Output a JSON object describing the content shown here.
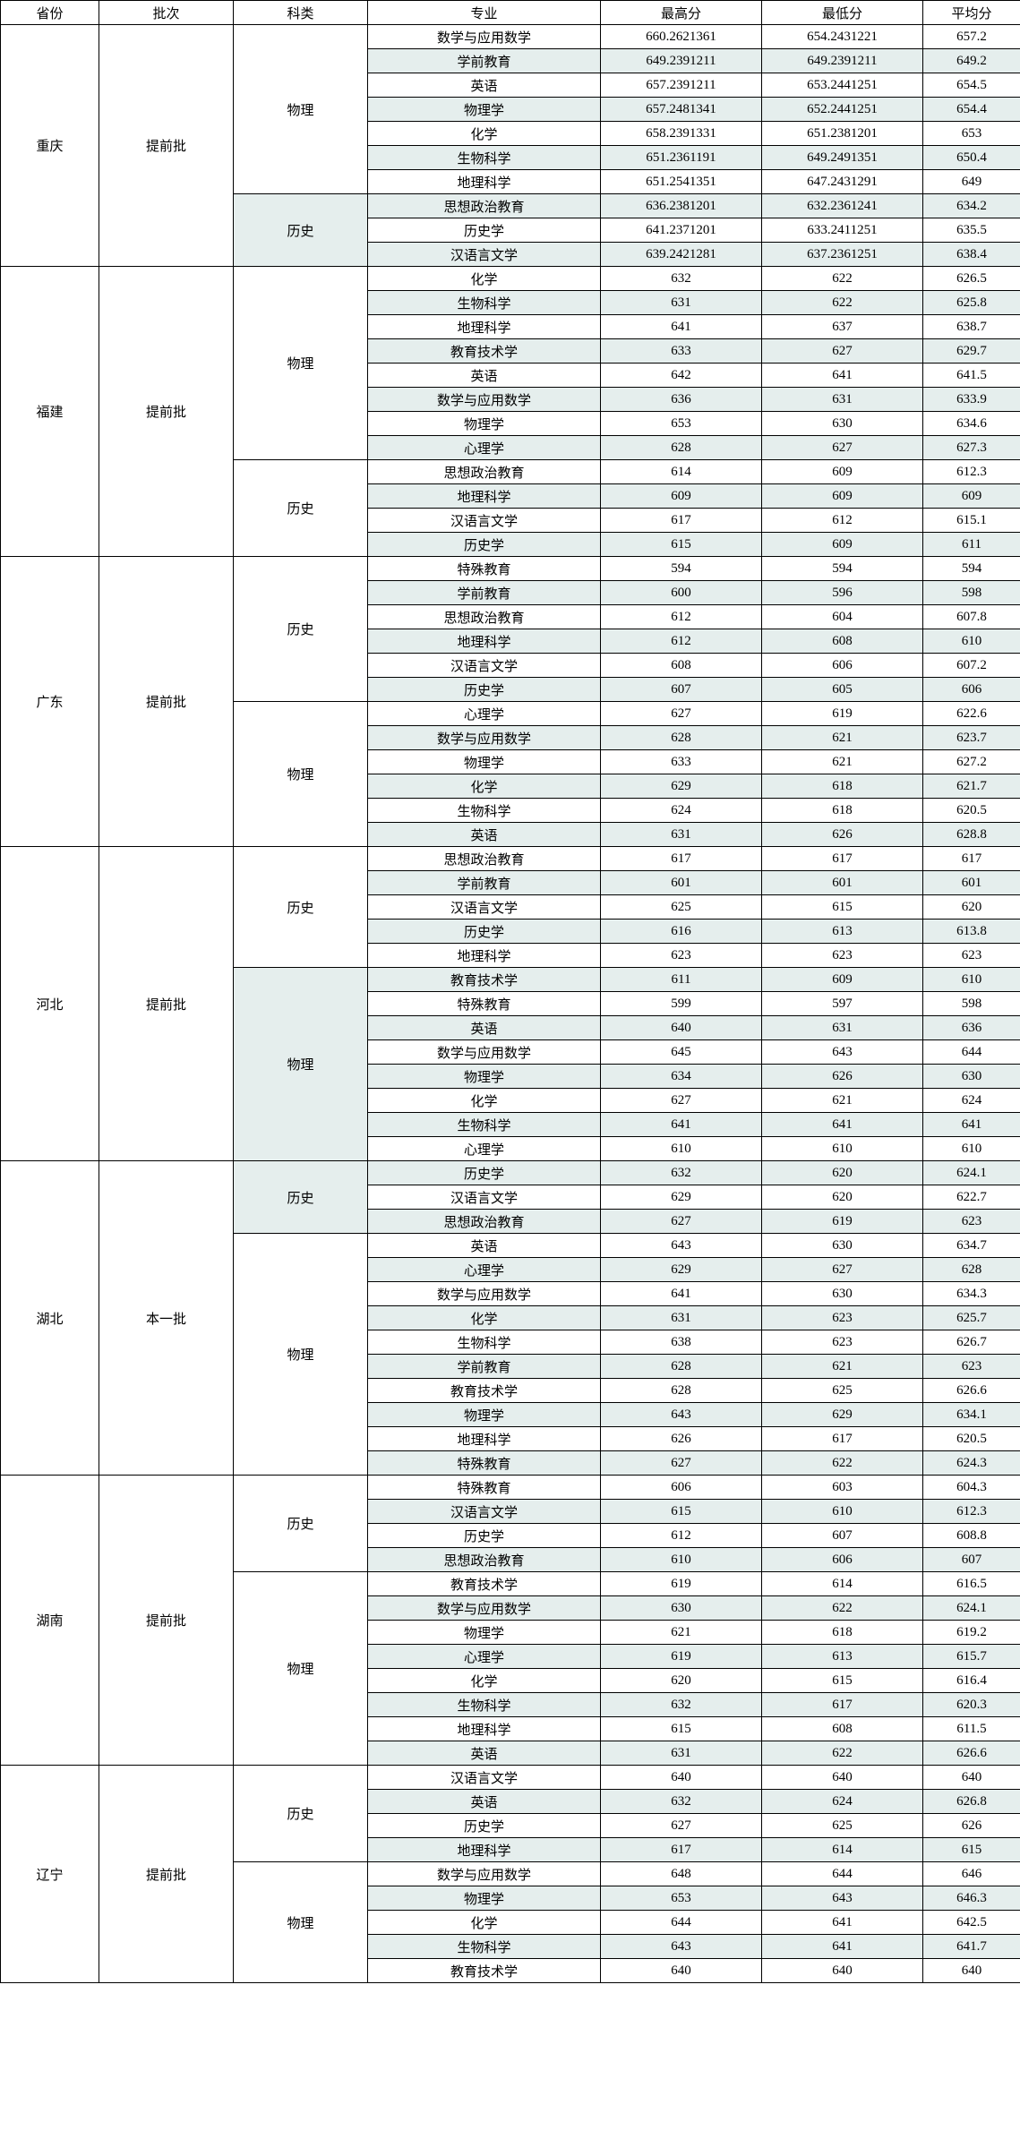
{
  "headers": [
    "省份",
    "批次",
    "科类",
    "专业",
    "最高分",
    "最低分",
    "平均分"
  ],
  "alt_bg": "#e5eeed",
  "provinces": [
    {
      "name": "重庆",
      "batch": "提前批",
      "categories": [
        {
          "name": "物理",
          "rows": [
            {
              "major": "数学与应用数学",
              "max": "660.2621361",
              "min": "654.2431221",
              "avg": "657.2"
            },
            {
              "major": "学前教育",
              "max": "649.2391211",
              "min": "649.2391211",
              "avg": "649.2"
            },
            {
              "major": "英语",
              "max": "657.2391211",
              "min": "653.2441251",
              "avg": "654.5"
            },
            {
              "major": "物理学",
              "max": "657.2481341",
              "min": "652.2441251",
              "avg": "654.4"
            },
            {
              "major": "化学",
              "max": "658.2391331",
              "min": "651.2381201",
              "avg": "653"
            },
            {
              "major": "生物科学",
              "max": "651.2361191",
              "min": "649.2491351",
              "avg": "650.4"
            },
            {
              "major": "地理科学",
              "max": "651.2541351",
              "min": "647.2431291",
              "avg": "649"
            }
          ]
        },
        {
          "name": "历史",
          "rows": [
            {
              "major": "思想政治教育",
              "max": "636.2381201",
              "min": "632.2361241",
              "avg": "634.2"
            },
            {
              "major": "历史学",
              "max": "641.2371201",
              "min": "633.2411251",
              "avg": "635.5"
            },
            {
              "major": "汉语言文学",
              "max": "639.2421281",
              "min": "637.2361251",
              "avg": "638.4"
            }
          ]
        }
      ]
    },
    {
      "name": "福建",
      "batch": "提前批",
      "categories": [
        {
          "name": "物理",
          "rows": [
            {
              "major": "化学",
              "max": "632",
              "min": "622",
              "avg": "626.5"
            },
            {
              "major": "生物科学",
              "max": "631",
              "min": "622",
              "avg": "625.8"
            },
            {
              "major": "地理科学",
              "max": "641",
              "min": "637",
              "avg": "638.7"
            },
            {
              "major": "教育技术学",
              "max": "633",
              "min": "627",
              "avg": "629.7"
            },
            {
              "major": "英语",
              "max": "642",
              "min": "641",
              "avg": "641.5"
            },
            {
              "major": "数学与应用数学",
              "max": "636",
              "min": "631",
              "avg": "633.9"
            },
            {
              "major": "物理学",
              "max": "653",
              "min": "630",
              "avg": "634.6"
            },
            {
              "major": "心理学",
              "max": "628",
              "min": "627",
              "avg": "627.3"
            }
          ]
        },
        {
          "name": "历史",
          "rows": [
            {
              "major": "思想政治教育",
              "max": "614",
              "min": "609",
              "avg": "612.3"
            },
            {
              "major": "地理科学",
              "max": "609",
              "min": "609",
              "avg": "609"
            },
            {
              "major": "汉语言文学",
              "max": "617",
              "min": "612",
              "avg": "615.1"
            },
            {
              "major": "历史学",
              "max": "615",
              "min": "609",
              "avg": "611"
            }
          ]
        }
      ]
    },
    {
      "name": "广东",
      "batch": "提前批",
      "categories": [
        {
          "name": "历史",
          "rows": [
            {
              "major": "特殊教育",
              "max": "594",
              "min": "594",
              "avg": "594"
            },
            {
              "major": "学前教育",
              "max": "600",
              "min": "596",
              "avg": "598"
            },
            {
              "major": "思想政治教育",
              "max": "612",
              "min": "604",
              "avg": "607.8"
            },
            {
              "major": "地理科学",
              "max": "612",
              "min": "608",
              "avg": "610"
            },
            {
              "major": "汉语言文学",
              "max": "608",
              "min": "606",
              "avg": "607.2"
            },
            {
              "major": "历史学",
              "max": "607",
              "min": "605",
              "avg": "606"
            }
          ]
        },
        {
          "name": "物理",
          "rows": [
            {
              "major": "心理学",
              "max": "627",
              "min": "619",
              "avg": "622.6"
            },
            {
              "major": "数学与应用数学",
              "max": "628",
              "min": "621",
              "avg": "623.7"
            },
            {
              "major": "物理学",
              "max": "633",
              "min": "621",
              "avg": "627.2"
            },
            {
              "major": "化学",
              "max": "629",
              "min": "618",
              "avg": "621.7"
            },
            {
              "major": "生物科学",
              "max": "624",
              "min": "618",
              "avg": "620.5"
            },
            {
              "major": "英语",
              "max": "631",
              "min": "626",
              "avg": "628.8"
            }
          ]
        }
      ]
    },
    {
      "name": "河北",
      "batch": "提前批",
      "categories": [
        {
          "name": "历史",
          "rows": [
            {
              "major": "思想政治教育",
              "max": "617",
              "min": "617",
              "avg": "617"
            },
            {
              "major": "学前教育",
              "max": "601",
              "min": "601",
              "avg": "601"
            },
            {
              "major": "汉语言文学",
              "max": "625",
              "min": "615",
              "avg": "620"
            },
            {
              "major": "历史学",
              "max": "616",
              "min": "613",
              "avg": "613.8"
            },
            {
              "major": "地理科学",
              "max": "623",
              "min": "623",
              "avg": "623"
            }
          ]
        },
        {
          "name": "物理",
          "rows": [
            {
              "major": "教育技术学",
              "max": "611",
              "min": "609",
              "avg": "610"
            },
            {
              "major": "特殊教育",
              "max": "599",
              "min": "597",
              "avg": "598"
            },
            {
              "major": "英语",
              "max": "640",
              "min": "631",
              "avg": "636"
            },
            {
              "major": "数学与应用数学",
              "max": "645",
              "min": "643",
              "avg": "644"
            },
            {
              "major": "物理学",
              "max": "634",
              "min": "626",
              "avg": "630"
            },
            {
              "major": "化学",
              "max": "627",
              "min": "621",
              "avg": "624"
            },
            {
              "major": "生物科学",
              "max": "641",
              "min": "641",
              "avg": "641"
            },
            {
              "major": "心理学",
              "max": "610",
              "min": "610",
              "avg": "610"
            }
          ]
        }
      ]
    },
    {
      "name": "湖北",
      "batch": "本一批",
      "categories": [
        {
          "name": "历史",
          "rows": [
            {
              "major": "历史学",
              "max": "632",
              "min": "620",
              "avg": "624.1"
            },
            {
              "major": "汉语言文学",
              "max": "629",
              "min": "620",
              "avg": "622.7"
            },
            {
              "major": "思想政治教育",
              "max": "627",
              "min": "619",
              "avg": "623"
            }
          ]
        },
        {
          "name": "物理",
          "rows": [
            {
              "major": "英语",
              "max": "643",
              "min": "630",
              "avg": "634.7"
            },
            {
              "major": "心理学",
              "max": "629",
              "min": "627",
              "avg": "628"
            },
            {
              "major": "数学与应用数学",
              "max": "641",
              "min": "630",
              "avg": "634.3"
            },
            {
              "major": "化学",
              "max": "631",
              "min": "623",
              "avg": "625.7"
            },
            {
              "major": "生物科学",
              "max": "638",
              "min": "623",
              "avg": "626.7"
            },
            {
              "major": "学前教育",
              "max": "628",
              "min": "621",
              "avg": "623"
            },
            {
              "major": "教育技术学",
              "max": "628",
              "min": "625",
              "avg": "626.6"
            },
            {
              "major": "物理学",
              "max": "643",
              "min": "629",
              "avg": "634.1"
            },
            {
              "major": "地理科学",
              "max": "626",
              "min": "617",
              "avg": "620.5"
            },
            {
              "major": "特殊教育",
              "max": "627",
              "min": "622",
              "avg": "624.3"
            }
          ]
        }
      ]
    },
    {
      "name": "湖南",
      "batch": "提前批",
      "categories": [
        {
          "name": "历史",
          "rows": [
            {
              "major": "特殊教育",
              "max": "606",
              "min": "603",
              "avg": "604.3"
            },
            {
              "major": "汉语言文学",
              "max": "615",
              "min": "610",
              "avg": "612.3"
            },
            {
              "major": "历史学",
              "max": "612",
              "min": "607",
              "avg": "608.8"
            },
            {
              "major": "思想政治教育",
              "max": "610",
              "min": "606",
              "avg": "607"
            }
          ]
        },
        {
          "name": "物理",
          "rows": [
            {
              "major": "教育技术学",
              "max": "619",
              "min": "614",
              "avg": "616.5"
            },
            {
              "major": "数学与应用数学",
              "max": "630",
              "min": "622",
              "avg": "624.1"
            },
            {
              "major": "物理学",
              "max": "621",
              "min": "618",
              "avg": "619.2"
            },
            {
              "major": "心理学",
              "max": "619",
              "min": "613",
              "avg": "615.7"
            },
            {
              "major": "化学",
              "max": "620",
              "min": "615",
              "avg": "616.4"
            },
            {
              "major": "生物科学",
              "max": "632",
              "min": "617",
              "avg": "620.3"
            },
            {
              "major": "地理科学",
              "max": "615",
              "min": "608",
              "avg": "611.5"
            },
            {
              "major": "英语",
              "max": "631",
              "min": "622",
              "avg": "626.6"
            }
          ]
        }
      ]
    },
    {
      "name": "辽宁",
      "batch": "提前批",
      "categories": [
        {
          "name": "历史",
          "rows": [
            {
              "major": "汉语言文学",
              "max": "640",
              "min": "640",
              "avg": "640"
            },
            {
              "major": "英语",
              "max": "632",
              "min": "624",
              "avg": "626.8"
            },
            {
              "major": "历史学",
              "max": "627",
              "min": "625",
              "avg": "626"
            },
            {
              "major": "地理科学",
              "max": "617",
              "min": "614",
              "avg": "615"
            }
          ]
        },
        {
          "name": "物理",
          "rows": [
            {
              "major": "数学与应用数学",
              "max": "648",
              "min": "644",
              "avg": "646"
            },
            {
              "major": "物理学",
              "max": "653",
              "min": "643",
              "avg": "646.3"
            },
            {
              "major": "化学",
              "max": "644",
              "min": "641",
              "avg": "642.5"
            },
            {
              "major": "生物科学",
              "max": "643",
              "min": "641",
              "avg": "641.7"
            },
            {
              "major": "教育技术学",
              "max": "640",
              "min": "640",
              "avg": "640"
            }
          ]
        }
      ]
    }
  ]
}
